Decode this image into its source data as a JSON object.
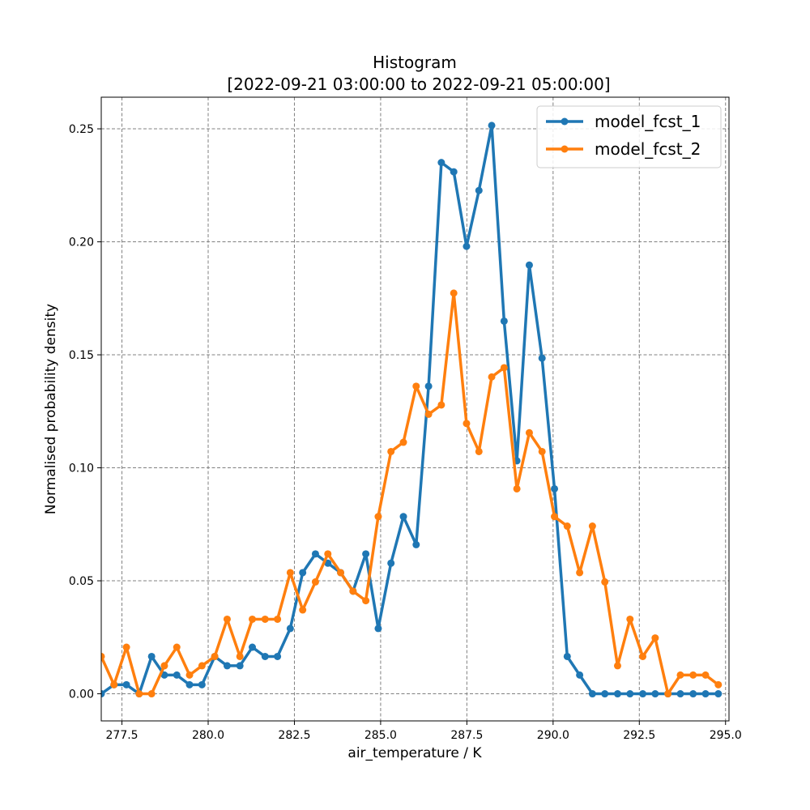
{
  "chart_data": {
    "type": "line",
    "title": "Histogram",
    "subtitle": "[2022-09-21 03:00:00 to 2022-09-21 05:00:00]",
    "xlabel": "air_temperature / K",
    "ylabel": "Normalised probability density",
    "xlim": [
      276.9,
      295.1
    ],
    "ylim": [
      -0.012,
      0.264
    ],
    "xticks": [
      277.5,
      280.0,
      282.5,
      285.0,
      287.5,
      290.0,
      292.5,
      295.0
    ],
    "xtick_labels": [
      "277.5",
      "280.0",
      "282.5",
      "285.0",
      "287.5",
      "290.0",
      "292.5",
      "295.0"
    ],
    "yticks": [
      0.0,
      0.05,
      0.1,
      0.15,
      0.2,
      0.25
    ],
    "ytick_labels": [
      "0.00",
      "0.05",
      "0.10",
      "0.15",
      "0.20",
      "0.25"
    ],
    "grid": true,
    "legend_position": "top-right",
    "x": [
      276.9,
      277.27,
      277.63,
      278.0,
      278.36,
      278.73,
      279.09,
      279.46,
      279.82,
      280.19,
      280.55,
      280.92,
      281.28,
      281.65,
      282.01,
      282.38,
      282.74,
      283.11,
      283.47,
      283.84,
      284.2,
      284.57,
      284.93,
      285.3,
      285.66,
      286.03,
      286.39,
      286.76,
      287.12,
      287.49,
      287.85,
      288.22,
      288.58,
      288.95,
      289.31,
      289.68,
      290.04,
      290.41,
      290.77,
      291.14,
      291.5,
      291.87,
      292.23,
      292.6,
      292.96,
      293.33,
      293.69,
      294.06,
      294.42,
      294.79
    ],
    "series": [
      {
        "name": "model_fcst_1",
        "color": "#1f77b4",
        "values": [
          0.0,
          0.004,
          0.004,
          0.0,
          0.0165,
          0.0083,
          0.0083,
          0.004,
          0.004,
          0.0165,
          0.0124,
          0.0124,
          0.0206,
          0.0165,
          0.0165,
          0.0289,
          0.0536,
          0.0619,
          0.0578,
          0.0536,
          0.0454,
          0.0619,
          0.0289,
          0.0578,
          0.0784,
          0.066,
          0.1361,
          0.2351,
          0.231,
          0.198,
          0.2227,
          0.2515,
          0.1649,
          0.1031,
          0.1897,
          0.1485,
          0.0907,
          0.0165,
          0.0083,
          0.0,
          0.0,
          0.0,
          0.0,
          0.0,
          0.0,
          0.0,
          0.0,
          0.0,
          0.0,
          0.0
        ]
      },
      {
        "name": "model_fcst_2",
        "color": "#ff7f0e",
        "values": [
          0.0165,
          0.004,
          0.0206,
          0.0,
          0.0,
          0.0124,
          0.0206,
          0.0083,
          0.0124,
          0.0165,
          0.033,
          0.0165,
          0.033,
          0.033,
          0.033,
          0.0536,
          0.0371,
          0.0495,
          0.0619,
          0.0536,
          0.0454,
          0.0412,
          0.0784,
          0.1072,
          0.1113,
          0.1361,
          0.1237,
          0.1278,
          0.1773,
          0.1196,
          0.1072,
          0.1402,
          0.1443,
          0.0907,
          0.1155,
          0.1072,
          0.0784,
          0.0742,
          0.0536,
          0.0742,
          0.0495,
          0.0124,
          0.033,
          0.0165,
          0.0247,
          0.0,
          0.0083,
          0.0083,
          0.0083,
          0.004
        ]
      }
    ]
  }
}
